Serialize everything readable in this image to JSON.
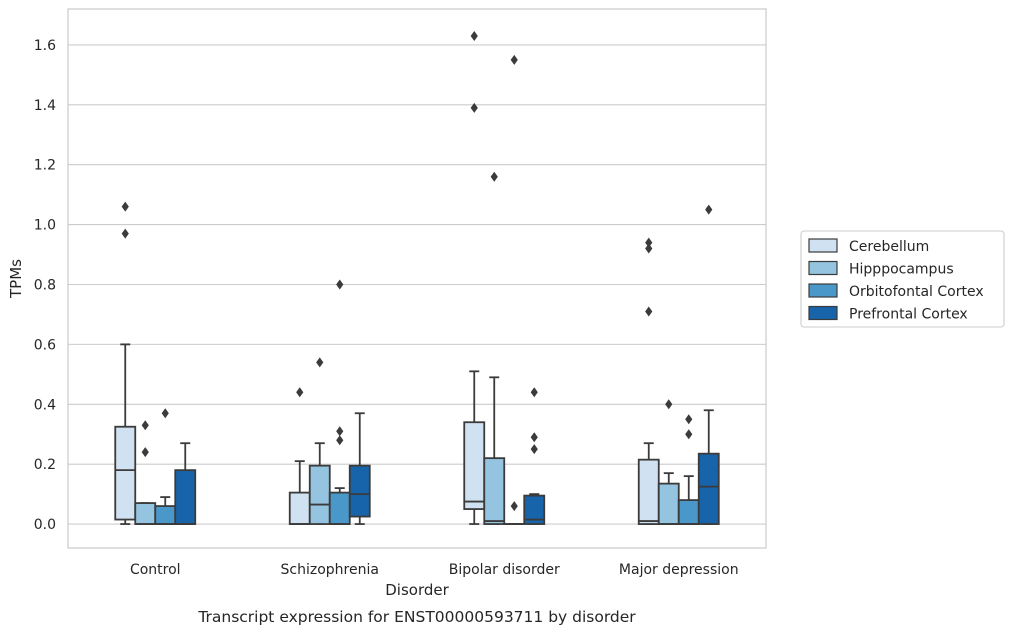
{
  "caption": "Transcript expression for ENST00000593711 by disorder",
  "chart_data": {
    "type": "boxplot",
    "title": "",
    "xlabel": "Disorder",
    "ylabel": "TPMs",
    "ylim": [
      -0.08,
      1.72
    ],
    "yticks": [
      0.0,
      0.2,
      0.4,
      0.6,
      0.8,
      1.0,
      1.2,
      1.4,
      1.6
    ],
    "ytick_labels": [
      "0.0",
      "0.2",
      "0.4",
      "0.6",
      "0.8",
      "1.0",
      "1.2",
      "1.4",
      "1.6"
    ],
    "grid": "horizontal",
    "legend_position": "right",
    "categories": [
      "Control",
      "Schizophrenia",
      "Bipolar disorder",
      "Major depression"
    ],
    "series": [
      {
        "name": "Cerebellum",
        "color": "#d0e1f2",
        "boxes": [
          {
            "min": 0.0,
            "q1": 0.015,
            "median": 0.18,
            "q3": 0.325,
            "max": 0.6,
            "outliers": [
              0.97,
              1.06
            ]
          },
          {
            "min": 0.0,
            "q1": 0.0,
            "median": 0.0,
            "q3": 0.105,
            "max": 0.21,
            "outliers": [
              0.44
            ]
          },
          {
            "min": 0.0,
            "q1": 0.05,
            "median": 0.075,
            "q3": 0.34,
            "max": 0.51,
            "outliers": [
              1.39,
              1.63
            ]
          },
          {
            "min": 0.0,
            "q1": 0.0,
            "median": 0.01,
            "q3": 0.215,
            "max": 0.27,
            "outliers": [
              0.71,
              0.92,
              0.94
            ]
          }
        ]
      },
      {
        "name": "Hipppocampus",
        "color": "#94c4df",
        "boxes": [
          {
            "min": 0.0,
            "q1": 0.0,
            "median": 0.0,
            "q3": 0.07,
            "max": 0.07,
            "outliers": [
              0.24,
              0.33
            ]
          },
          {
            "min": 0.0,
            "q1": 0.0,
            "median": 0.065,
            "q3": 0.195,
            "max": 0.27,
            "outliers": [
              0.54
            ]
          },
          {
            "min": 0.0,
            "q1": 0.0,
            "median": 0.01,
            "q3": 0.22,
            "max": 0.49,
            "outliers": [
              1.16
            ]
          },
          {
            "min": 0.0,
            "q1": 0.0,
            "median": 0.0,
            "q3": 0.135,
            "max": 0.17,
            "outliers": [
              0.4
            ]
          }
        ]
      },
      {
        "name": "Orbitofontal Cortex",
        "color": "#4a98c9",
        "boxes": [
          {
            "min": 0.0,
            "q1": 0.0,
            "median": 0.0,
            "q3": 0.06,
            "max": 0.09,
            "outliers": [
              0.37
            ]
          },
          {
            "min": 0.0,
            "q1": 0.0,
            "median": 0.0,
            "q3": 0.105,
            "max": 0.12,
            "outliers": [
              0.28,
              0.31,
              0.8
            ]
          },
          {
            "min": 0.0,
            "q1": 0.0,
            "median": 0.0,
            "q3": 0.0,
            "max": 0.0,
            "outliers": [
              0.06,
              1.55
            ]
          },
          {
            "min": 0.0,
            "q1": 0.0,
            "median": 0.0,
            "q3": 0.08,
            "max": 0.16,
            "outliers": [
              0.3,
              0.35
            ]
          }
        ]
      },
      {
        "name": "Prefrontal Cortex",
        "color": "#1764ab",
        "boxes": [
          {
            "min": 0.0,
            "q1": 0.0,
            "median": 0.0,
            "q3": 0.18,
            "max": 0.27,
            "outliers": []
          },
          {
            "min": 0.0,
            "q1": 0.025,
            "median": 0.1,
            "q3": 0.195,
            "max": 0.37,
            "outliers": []
          },
          {
            "min": 0.0,
            "q1": 0.0,
            "median": 0.015,
            "q3": 0.095,
            "max": 0.1,
            "outliers": [
              0.25,
              0.29,
              0.44
            ]
          },
          {
            "min": 0.0,
            "q1": 0.0,
            "median": 0.125,
            "q3": 0.235,
            "max": 0.38,
            "outliers": [
              1.05
            ]
          }
        ]
      }
    ]
  }
}
